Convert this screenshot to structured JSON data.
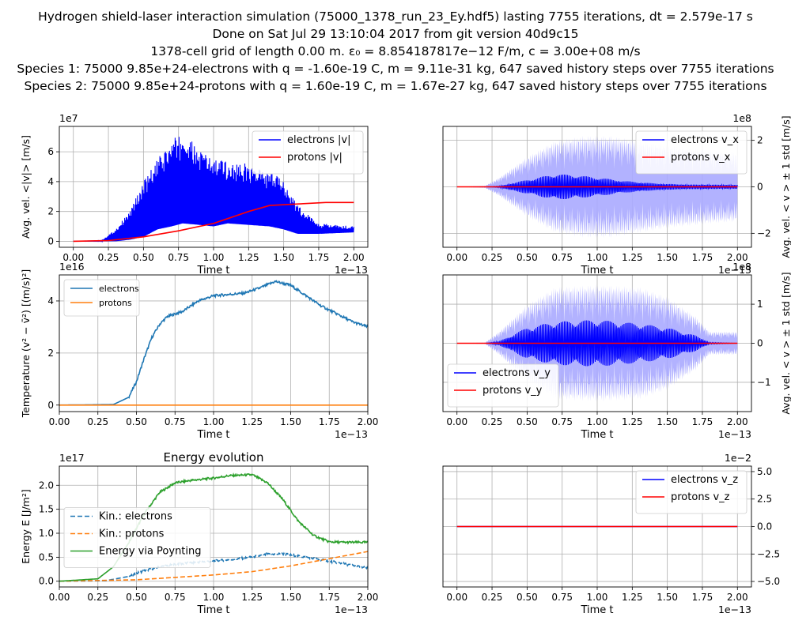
{
  "header": {
    "line1": "Hydrogen shield-laser interaction simulation (75000_1378_run_23_Ey.hdf5) lasting 7755 iterations, dt = 2.579e-17 s",
    "line2": "Done on Sat Jul 29 13:10:04 2017 from git version 40d9c15",
    "line3": "1378-cell grid of length 0.00 m. ε₀ = 8.854187817e−12 F/m, c = 3.00e+08 m/s",
    "line4": "Species 1: 75000 9.85e+24-electrons with q = -1.60e-19 C, m = 9.11e-31 kg, 647 saved history steps over 7755 iterations",
    "line5": "Species 2: 75000 9.85e+24-protons with q = 1.60e-19 C, m = 1.67e-27 kg, 647 saved history steps over 7755 iterations"
  },
  "colors": {
    "blue": "#0000ff",
    "red": "#ff0000",
    "c0": "#1f77b4",
    "c1": "#ff7f0e",
    "c2": "#2ca02c",
    "band": "#aaaaff"
  },
  "chart_data": [
    {
      "id": "speed",
      "type": "line",
      "title": "",
      "xlabel": "Time t",
      "ylabel": "Avg. vel. <|v|> [m/s]",
      "x_offset_text": "1e−13",
      "y_offset_text": "1e7",
      "xlim": [
        -0.1,
        2.1
      ],
      "ylim": [
        -0.4,
        7.7
      ],
      "xticks": [
        "0.00",
        "0.25",
        "0.50",
        "0.75",
        "1.00",
        "1.25",
        "1.50",
        "1.75",
        "2.00"
      ],
      "yticks": [
        "0",
        "2",
        "4",
        "6"
      ],
      "grid": true,
      "legend_position": "top-right",
      "series": [
        {
          "name": "electrons |v|",
          "color": "#0000ff",
          "style": "oscillating",
          "x": [
            0,
            0.2,
            0.3,
            0.4,
            0.5,
            0.6,
            0.7,
            0.78,
            0.9,
            1.0,
            1.1,
            1.25,
            1.4,
            1.5,
            1.6,
            1.75,
            2.0
          ],
          "upper": [
            0,
            0.05,
            0.8,
            2.0,
            4.0,
            5.5,
            6.8,
            7.3,
            6.2,
            5.6,
            5.4,
            5.2,
            4.6,
            4.2,
            2.4,
            1.2,
            1.0
          ],
          "lower": [
            0,
            0,
            0,
            0.1,
            0.3,
            0.8,
            1.0,
            1.2,
            1.1,
            1.0,
            1.2,
            1.1,
            1.0,
            0.8,
            0.5,
            0.5,
            0.6
          ]
        },
        {
          "name": "protons |v|",
          "color": "#ff0000",
          "style": "line",
          "x": [
            0,
            0.25,
            0.5,
            0.75,
            1.0,
            1.25,
            1.4,
            1.6,
            1.8,
            2.0
          ],
          "y": [
            0,
            0.05,
            0.3,
            0.7,
            1.2,
            2.0,
            2.4,
            2.5,
            2.6,
            2.6
          ]
        }
      ]
    },
    {
      "id": "vx",
      "type": "line",
      "title": "",
      "xlabel": "Time t",
      "ylabel": "Avg. vel. < v > ± 1 std [m/s]",
      "x_offset_text": "1e−13",
      "y_offset_text": "1e8",
      "xlim": [
        -0.1,
        2.1
      ],
      "ylim": [
        -2.6,
        2.6
      ],
      "xticks": [
        "0.00",
        "0.25",
        "0.50",
        "0.75",
        "1.00",
        "1.25",
        "1.50",
        "1.75",
        "2.00"
      ],
      "yticks": [
        "−2",
        "0",
        "2"
      ],
      "yticks_values": [
        -2,
        0,
        2
      ],
      "grid": true,
      "yaxis_side": "right",
      "legend_position": "top-right",
      "band": {
        "x": [
          0,
          0.2,
          0.3,
          0.5,
          0.7,
          0.9,
          1.1,
          1.3,
          1.5,
          1.8,
          2.0
        ],
        "amp": [
          0,
          0.05,
          0.4,
          1.3,
          2.0,
          2.2,
          2.2,
          2.0,
          1.8,
          1.6,
          1.5
        ]
      },
      "series": [
        {
          "name": "electrons v_x",
          "color": "#0000ff",
          "style": "oscillating",
          "x": [
            0,
            0.2,
            0.3,
            0.5,
            0.7,
            0.85,
            1.0,
            1.2,
            1.4,
            1.6,
            2.0
          ],
          "amp": [
            0,
            0,
            0.03,
            0.3,
            0.55,
            0.5,
            0.4,
            0.25,
            0.15,
            0.1,
            0.08
          ]
        },
        {
          "name": "protons v_x",
          "color": "#ff0000",
          "style": "line",
          "x": [
            0,
            2.0
          ],
          "y": [
            0,
            0
          ]
        }
      ]
    },
    {
      "id": "temperature",
      "type": "line",
      "title": "",
      "xlabel": "Time t",
      "ylabel": "Temperature (v² − v̄²) [(m/s)²]",
      "x_offset_text": "1e−13",
      "y_offset_text": "1e16",
      "xlim": [
        0,
        2.0
      ],
      "ylim": [
        -0.25,
        5.0
      ],
      "xticks": [
        "0.00",
        "0.25",
        "0.50",
        "0.75",
        "1.00",
        "1.25",
        "1.50",
        "1.75",
        "2.00"
      ],
      "yticks": [
        "0",
        "2",
        "4"
      ],
      "grid": true,
      "legend_position": "top-left",
      "series": [
        {
          "name": "electrons",
          "color": "#1f77b4",
          "style": "noisy",
          "x": [
            0,
            0.35,
            0.45,
            0.5,
            0.55,
            0.6,
            0.65,
            0.7,
            0.8,
            0.9,
            1.0,
            1.2,
            1.3,
            1.4,
            1.5,
            1.6,
            1.7,
            1.8,
            1.9,
            2.0
          ],
          "y": [
            0,
            0.02,
            0.3,
            0.9,
            1.8,
            2.6,
            3.1,
            3.4,
            3.6,
            4.0,
            4.2,
            4.3,
            4.5,
            4.75,
            4.6,
            4.2,
            3.8,
            3.5,
            3.2,
            3.0
          ]
        },
        {
          "name": "protons",
          "color": "#ff7f0e",
          "style": "line",
          "x": [
            0,
            2.0
          ],
          "y": [
            0,
            0
          ]
        }
      ]
    },
    {
      "id": "vy",
      "type": "line",
      "title": "",
      "xlabel": "Time t",
      "ylabel": "Avg. vel. < v > ± 1 std [m/s]",
      "x_offset_text": "1e−13",
      "y_offset_text": "1e8",
      "xlim": [
        -0.1,
        2.1
      ],
      "ylim": [
        -1.75,
        1.75
      ],
      "xticks": [
        "0.00",
        "0.25",
        "0.50",
        "0.75",
        "1.00",
        "1.25",
        "1.50",
        "1.75",
        "2.00"
      ],
      "yticks": [
        "−1",
        "0",
        "1"
      ],
      "yticks_values": [
        -1,
        0,
        1
      ],
      "grid": true,
      "yaxis_side": "right",
      "legend_position": "bottom-left",
      "band": {
        "x": [
          0,
          0.2,
          0.3,
          0.5,
          0.7,
          1.0,
          1.3,
          1.5,
          1.7,
          1.8,
          2.0
        ],
        "amp": [
          0,
          0.02,
          0.3,
          1.0,
          1.45,
          1.5,
          1.45,
          1.2,
          0.7,
          0.3,
          0.3
        ]
      },
      "series": [
        {
          "name": "electrons v_y",
          "color": "#0000ff",
          "style": "oscillating",
          "x": [
            0,
            0.2,
            0.3,
            0.5,
            0.7,
            1.0,
            1.3,
            1.5,
            1.7,
            1.8,
            2.0
          ],
          "amp": [
            0,
            0,
            0.05,
            0.4,
            0.55,
            0.6,
            0.5,
            0.4,
            0.2,
            0.02,
            0.0
          ]
        },
        {
          "name": "protons v_y",
          "color": "#ff0000",
          "style": "line",
          "x": [
            0,
            2.0
          ],
          "y": [
            0,
            0
          ]
        }
      ]
    },
    {
      "id": "energy",
      "type": "line",
      "title": "Energy evolution",
      "xlabel": "Time t",
      "ylabel": "Energy E [J/m²]",
      "x_offset_text": "1e−13",
      "y_offset_text": "1e17",
      "xlim": [
        0,
        2.0
      ],
      "ylim": [
        -0.12,
        2.4
      ],
      "xticks": [
        "0.00",
        "0.25",
        "0.50",
        "0.75",
        "1.00",
        "1.25",
        "1.50",
        "1.75",
        "2.00"
      ],
      "yticks": [
        "0.0",
        "0.5",
        "1.0",
        "1.5",
        "2.0"
      ],
      "grid": true,
      "legend_position": "center-left",
      "series": [
        {
          "name": "Kin.: electrons",
          "color": "#1f77b4",
          "style": "dashed-noisy",
          "x": [
            0,
            0.3,
            0.45,
            0.55,
            0.65,
            0.75,
            0.9,
            1.0,
            1.2,
            1.35,
            1.45,
            1.6,
            1.75,
            2.0
          ],
          "y": [
            0,
            0.01,
            0.1,
            0.22,
            0.3,
            0.35,
            0.4,
            0.42,
            0.48,
            0.56,
            0.57,
            0.5,
            0.42,
            0.27
          ]
        },
        {
          "name": "Kin.: protons",
          "color": "#ff7f0e",
          "style": "dashed",
          "x": [
            0,
            0.5,
            0.75,
            1.0,
            1.25,
            1.5,
            1.75,
            2.0
          ],
          "y": [
            0,
            0.03,
            0.08,
            0.13,
            0.2,
            0.32,
            0.47,
            0.62
          ]
        },
        {
          "name": "Energy via Poynting",
          "color": "#2ca02c",
          "style": "noisy",
          "x": [
            0,
            0.25,
            0.35,
            0.45,
            0.55,
            0.65,
            0.75,
            0.85,
            1.0,
            1.1,
            1.25,
            1.35,
            1.45,
            1.55,
            1.65,
            1.75,
            1.85,
            2.0
          ],
          "y": [
            0,
            0.05,
            0.3,
            0.8,
            1.4,
            1.85,
            2.05,
            2.1,
            2.15,
            2.2,
            2.22,
            2.05,
            1.7,
            1.25,
            0.95,
            0.82,
            0.81,
            0.81
          ]
        }
      ]
    },
    {
      "id": "vz",
      "type": "line",
      "title": "",
      "xlabel": "Time t",
      "ylabel": "",
      "x_offset_text": "1e−13",
      "y_offset_text": "1e−2",
      "xlim": [
        -0.1,
        2.1
      ],
      "ylim": [
        -5.5,
        5.5
      ],
      "xticks": [
        "0.00",
        "0.25",
        "0.50",
        "0.75",
        "1.00",
        "1.25",
        "1.50",
        "1.75",
        "2.00"
      ],
      "yticks": [
        "−5.0",
        "−2.5",
        "0.0",
        "2.5",
        "5.0"
      ],
      "yticks_values": [
        -5,
        -2.5,
        0,
        2.5,
        5
      ],
      "grid": true,
      "yaxis_side": "right",
      "legend_position": "top-right",
      "series": [
        {
          "name": "electrons v_z",
          "color": "#0000ff",
          "style": "line",
          "x": [
            0,
            2.0
          ],
          "y": [
            0,
            0
          ]
        },
        {
          "name": "protons v_z",
          "color": "#ff0000",
          "style": "line",
          "x": [
            0,
            2.0
          ],
          "y": [
            0,
            0
          ]
        }
      ]
    }
  ]
}
